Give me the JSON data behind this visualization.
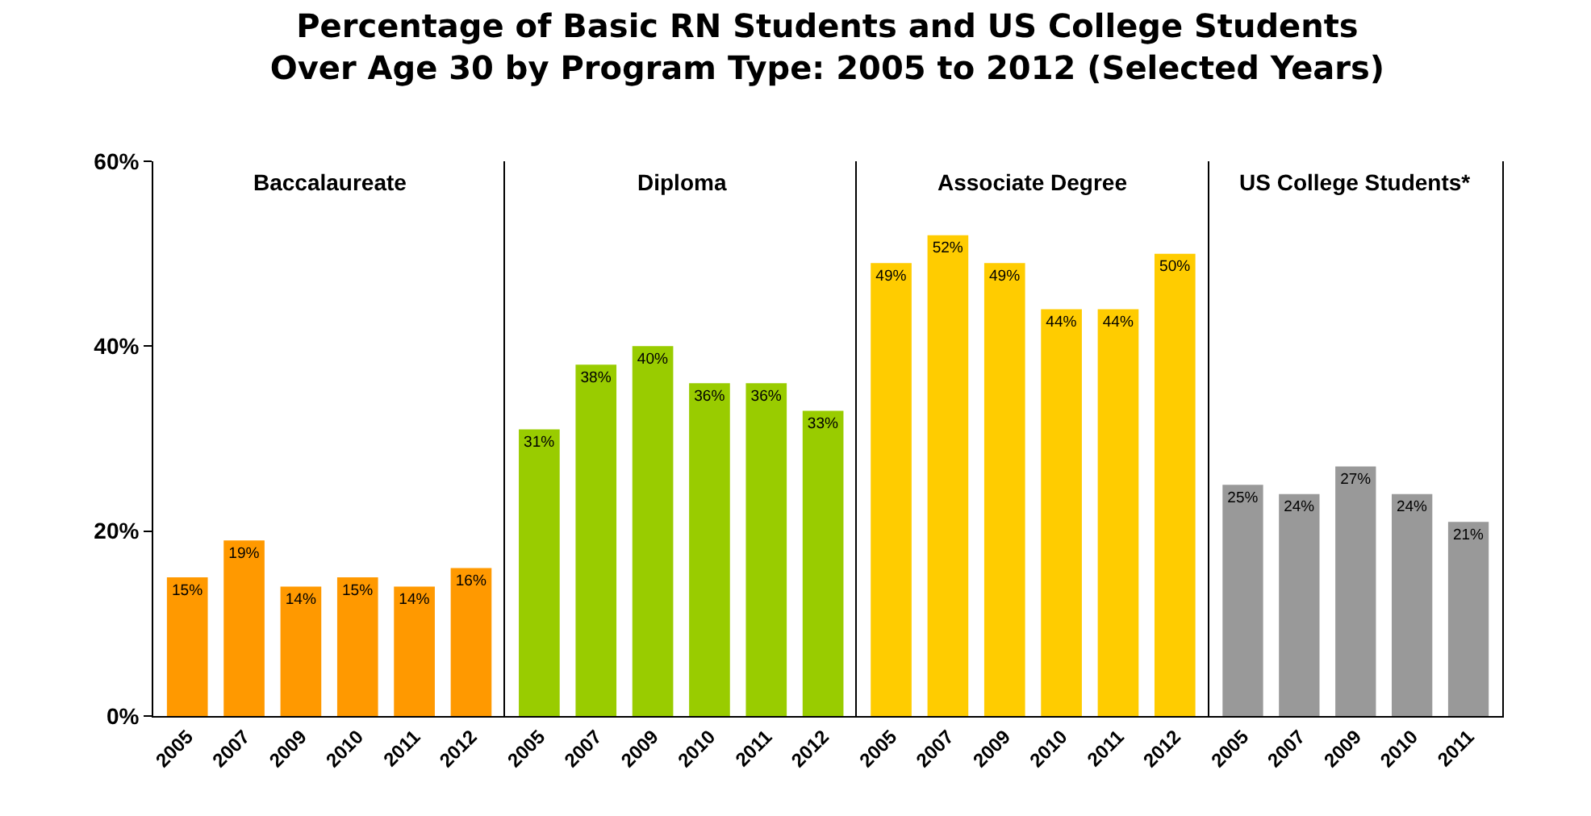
{
  "chart_data": [
    {
      "type": "bar",
      "title": "Percentage of Basic RN Students and US College Students\nOver Age 30 by Program Type: 2005 to 2012 (Selected Years)",
      "subtitle": "Baccalaureate",
      "categories": [
        "2005",
        "2007",
        "2009",
        "2010",
        "2011",
        "2012"
      ],
      "values": [
        15,
        19,
        14,
        15,
        14,
        16
      ],
      "value_labels": [
        "15%",
        "19%",
        "14%",
        "15%",
        "14%",
        "16%"
      ],
      "color": "#ff9900",
      "ylim": [
        0,
        60
      ],
      "yticks": [
        {
          "value": 0,
          "label": "0%"
        },
        {
          "value": 20,
          "label": "20%"
        },
        {
          "value": 40,
          "label": "40%"
        },
        {
          "value": 60,
          "label": "60%"
        }
      ]
    },
    {
      "type": "bar",
      "subtitle": "Diploma",
      "categories": [
        "2005",
        "2007",
        "2009",
        "2010",
        "2011",
        "2012"
      ],
      "values": [
        31,
        38,
        40,
        36,
        36,
        33
      ],
      "value_labels": [
        "31%",
        "38%",
        "40%",
        "36%",
        "36%",
        "33%"
      ],
      "color": "#99cc00",
      "ylim": [
        0,
        60
      ],
      "tick_labels": "x"
    },
    {
      "type": "bar",
      "subtitle": "Associate Degree",
      "categories": [
        "2005",
        "2007",
        "2009",
        "2010",
        "2011",
        "2012"
      ],
      "values": [
        49,
        52,
        49,
        44,
        44,
        50
      ],
      "value_labels": [
        "49%",
        "52%",
        "49%",
        "44%",
        "44%",
        "50%"
      ],
      "color": "#ffcc00",
      "ylim": [
        0,
        60
      ],
      "tick_labels": "x"
    },
    {
      "type": "bar",
      "subtitle": "US College Students*",
      "categories": [
        "2005",
        "2007",
        "2009",
        "2010",
        "2011"
      ],
      "values": [
        25,
        24,
        27,
        24,
        21
      ],
      "value_labels": [
        "25%",
        "24%",
        "27%",
        "24%",
        "21%"
      ],
      "color": "#999999",
      "ylim": [
        0,
        60
      ],
      "tick_labels": "x"
    }
  ]
}
